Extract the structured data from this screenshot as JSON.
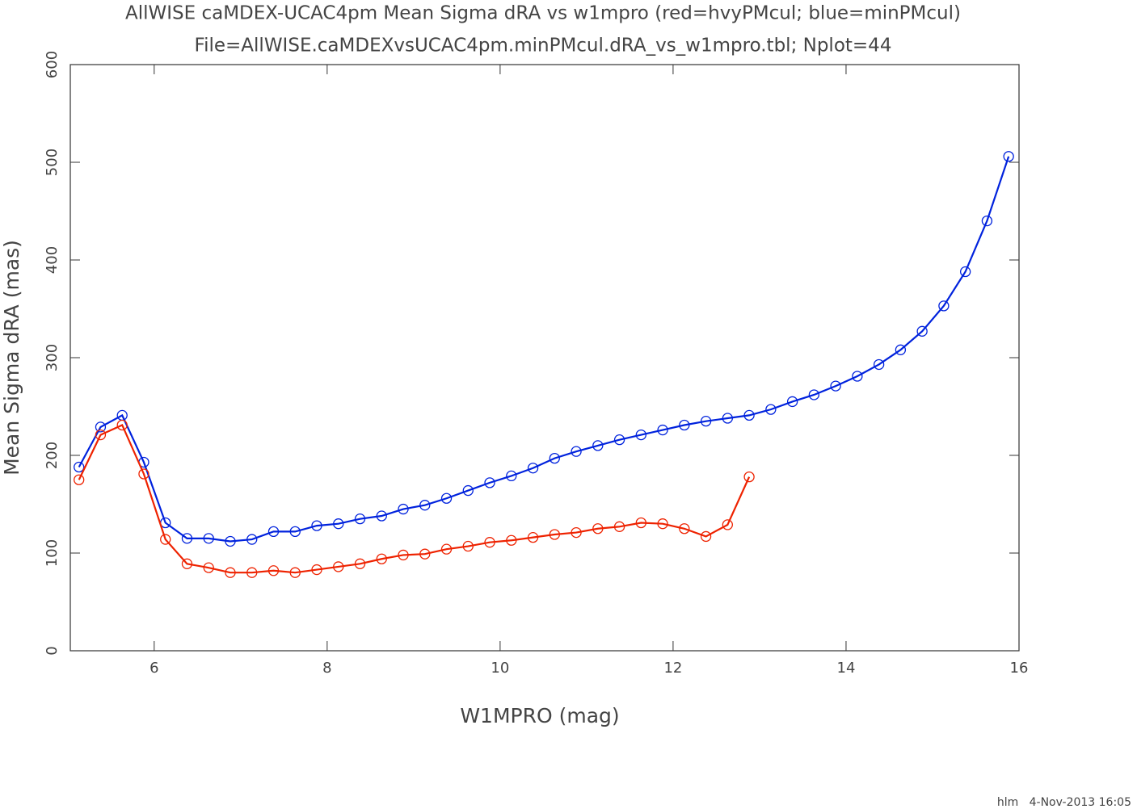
{
  "chart_data": {
    "type": "line",
    "title": "AllWISE caMDEX-UCAC4pm Mean Sigma dRA vs w1mpro (red=hvyPMcul; blue=minPMcul)",
    "subtitle": "File=AllWISE.caMDEXvsUCAC4pm.minPMcul.dRA_vs_w1mpro.tbl; Nplot=44",
    "x_label": "W1MPRO (mag)",
    "y_label": "Mean Sigma dRA (mas)",
    "footer": "hlm   4-Nov-2013 16:05",
    "xlim": [
      5.03,
      16
    ],
    "xticks": [
      6,
      8,
      10,
      12,
      14,
      16
    ],
    "ylim": [
      0,
      600
    ],
    "yticks": [
      0,
      100,
      200,
      300,
      400,
      500,
      600
    ],
    "series": [
      {
        "color": "#0022dd",
        "x": [
          5.13,
          5.38,
          5.63,
          5.88,
          6.13,
          6.38,
          6.63,
          6.88,
          7.13,
          7.38,
          7.63,
          7.88,
          8.13,
          8.38,
          8.63,
          8.88,
          9.13,
          9.38,
          9.63,
          9.88,
          10.13,
          10.38,
          10.63,
          10.88,
          11.13,
          11.38,
          11.63,
          11.88,
          12.13,
          12.38,
          12.63,
          12.88,
          13.13,
          13.38,
          13.63,
          13.88,
          14.13,
          14.38,
          14.63,
          14.88,
          15.13,
          15.38,
          15.63,
          15.88
        ],
        "values": [
          188,
          229,
          241,
          193,
          131,
          115,
          115,
          112,
          114,
          122,
          122,
          128,
          130,
          135,
          138,
          145,
          149,
          156,
          164,
          172,
          179,
          187,
          197,
          204,
          210,
          216,
          221,
          226,
          231,
          235,
          238,
          241,
          247,
          255,
          262,
          271,
          281,
          293,
          308,
          327,
          353,
          388,
          440,
          506
        ]
      },
      {
        "color": "#ee2200",
        "x": [
          5.13,
          5.38,
          5.63,
          5.88,
          6.13,
          6.38,
          6.63,
          6.88,
          7.13,
          7.38,
          7.63,
          7.88,
          8.13,
          8.38,
          8.63,
          8.88,
          9.13,
          9.38,
          9.63,
          9.88,
          10.13,
          10.38,
          10.63,
          10.88,
          11.13,
          11.38,
          11.63,
          11.88,
          12.13,
          12.38,
          12.63,
          12.88
        ],
        "values": [
          175,
          221,
          231,
          181,
          114,
          89,
          85,
          80,
          80,
          82,
          80,
          83,
          86,
          89,
          94,
          98,
          99,
          104,
          107,
          111,
          113,
          116,
          119,
          121,
          125,
          127,
          131,
          130,
          125,
          117,
          129,
          178
        ]
      }
    ]
  }
}
